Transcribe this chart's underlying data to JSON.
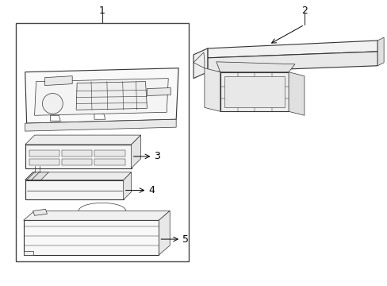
{
  "background_color": "#ffffff",
  "line_color": "#333333",
  "lw_main": 0.8,
  "lw_detail": 0.5,
  "label_fontsize": 9,
  "fig_width": 4.89,
  "fig_height": 3.6,
  "dpi": 100
}
